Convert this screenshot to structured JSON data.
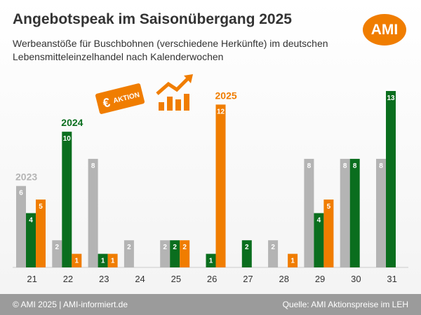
{
  "title": "Angebotspeak im Saisonübergang 2025",
  "subtitle": "Werbeanstöße für Buschbohnen (verschiedene Herkünfte) im deutschen Lebensmitteleinzelhandel nach Kalenderwochen",
  "logo": "AMI",
  "aktion_label": "AKTION",
  "colors": {
    "2023": "#b4b4b4",
    "2024": "#0a6e1e",
    "2025": "#f07d00",
    "footer": "#9b9b9b"
  },
  "footer": {
    "copyright": "© AMI 2025 | AMI-informiert.de",
    "source": "Quelle: AMI Aktionspreise im LEH"
  },
  "chart_data": {
    "type": "bar",
    "categories": [
      "21",
      "22",
      "23",
      "24",
      "25",
      "26",
      "27",
      "28",
      "29",
      "30",
      "31"
    ],
    "series": [
      {
        "name": "2023",
        "values": [
          6,
          2,
          8,
          2,
          2,
          null,
          null,
          2,
          8,
          8,
          8
        ]
      },
      {
        "name": "2024",
        "values": [
          4,
          10,
          1,
          null,
          2,
          1,
          2,
          null,
          4,
          8,
          13
        ]
      },
      {
        "name": "2025",
        "values": [
          5,
          1,
          1,
          null,
          2,
          12,
          null,
          1,
          5,
          null,
          null
        ]
      }
    ],
    "ylim": [
      0,
      13
    ]
  }
}
